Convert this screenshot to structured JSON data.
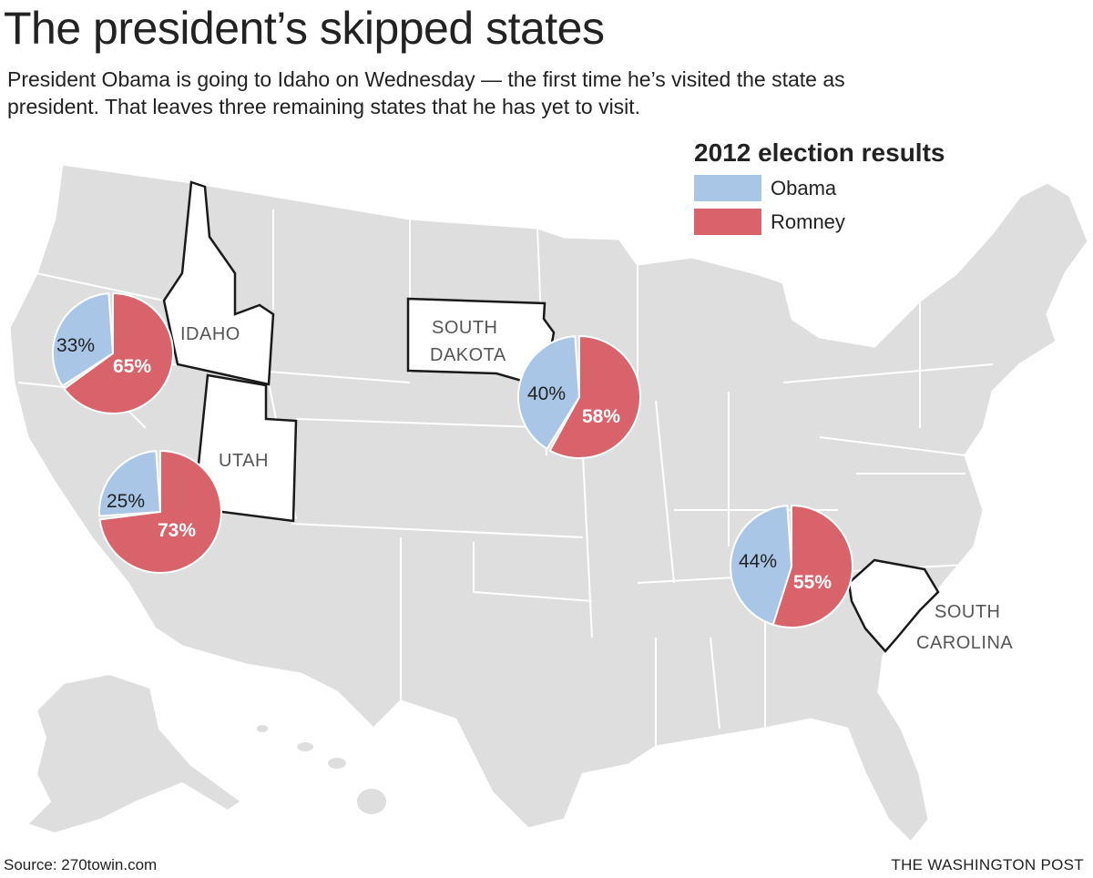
{
  "header": {
    "title": "The president’s skipped states",
    "subtitle_line1": "President Obama is going to Idaho on Wednesday —  the first time he’s visited the state as",
    "subtitle_line2": "president. That leaves three remaining states that he has yet to visit."
  },
  "legend": {
    "title": "2012 election results",
    "items": [
      {
        "label": "Obama",
        "color": "#a9c6e6"
      },
      {
        "label": "Romney",
        "color": "#d9636b"
      }
    ]
  },
  "colors": {
    "land": "#dedede",
    "highlight": "#ffffff",
    "border": "#ffffff",
    "highlight_border": "#1a1a1a"
  },
  "states": [
    {
      "name": "IDAHO",
      "obama_label": "33%",
      "romney_label": "65%",
      "obama": 33,
      "romney": 65
    },
    {
      "name": "SOUTH DAKOTA",
      "name_line1": "SOUTH",
      "name_line2": "DAKOTA",
      "obama_label": "40%",
      "romney_label": "58%",
      "obama": 40,
      "romney": 58
    },
    {
      "name": "UTAH",
      "obama_label": "25%",
      "romney_label": "73%",
      "obama": 25,
      "romney": 73
    },
    {
      "name": "SOUTH CAROLINA",
      "name_line1": "SOUTH",
      "name_line2": "CAROLINA",
      "obama_label": "44%",
      "romney_label": "55%",
      "obama": 44,
      "romney": 55
    }
  ],
  "footer": {
    "source": "Source: 270towin.com",
    "credit": "THE WASHINGTON POST"
  }
}
